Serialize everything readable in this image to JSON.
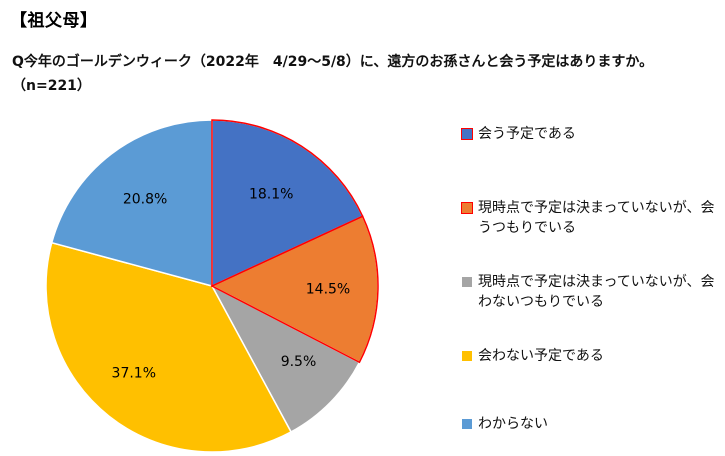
{
  "header": {
    "section_label": "【祖父母】",
    "question": "Q今年のゴールデンウィーク（2022年　4/29～5/8）に、遠方のお孫さんと会う予定はありますか。（n=221）"
  },
  "chart_data": {
    "type": "pie",
    "title": "",
    "n": 221,
    "start_angle_deg": 0,
    "direction": "clockwise",
    "unit": "%",
    "slices": [
      {
        "label": "会う予定である",
        "value": 18.1,
        "display": "18.1%",
        "color": "#4472C4"
      },
      {
        "label": "現時点で予定は決まっていないが、会うつもりでいる",
        "value": 14.5,
        "display": "14.5%",
        "color": "#ED7D31"
      },
      {
        "label": "現時点で予定は決まっていないが、会わないつもりでいる",
        "value": 9.5,
        "display": "9.5%",
        "color": "#A5A5A5"
      },
      {
        "label": "会わない予定である",
        "value": 37.1,
        "display": "37.1%",
        "color": "#FFC000"
      },
      {
        "label": "わからない",
        "value": 20.8,
        "display": "20.8%",
        "color": "#5B9BD5"
      }
    ],
    "highlight_color": "#FF0000",
    "legend_position": "right",
    "legend": [
      "会う予定である",
      "現時点で予定は決まっていないが、会うつもりでいる",
      "現時点で予定は決まっていないが、会わないつもりでいる",
      "会わない予定である",
      "わからない"
    ]
  }
}
